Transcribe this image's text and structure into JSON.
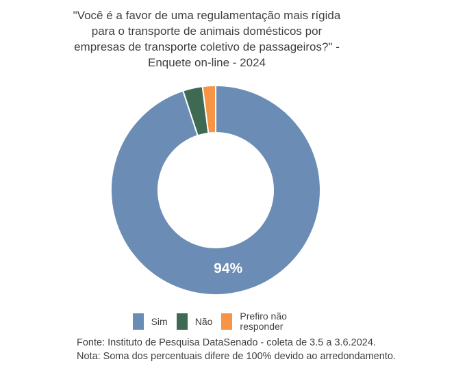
{
  "page": {
    "background_color": "#ffffff",
    "text_color": "#3f3f3f"
  },
  "chart_data": {
    "type": "pie",
    "subtype": "donut",
    "title": "\"Você é a favor de uma regulamentação mais rígida\npara o transporte de animais domésticos por\nempresas de transporte coletivo de passageiros?\" -\nEnquete on-line - 2024",
    "items": [
      {
        "key": "sim",
        "label": "Sim",
        "value": 94,
        "color": "#6b8cb4",
        "data_label": "94%"
      },
      {
        "key": "nao",
        "label": "Não",
        "value": 3,
        "color": "#3e6a54",
        "data_label": null
      },
      {
        "key": "prefiro-nao-responder",
        "label": "Prefiro não responder",
        "value": 2,
        "color": "#f79445",
        "data_label": null
      }
    ],
    "donut_hole_ratio": 0.55,
    "start_angle_deg": 0,
    "direction": "clockwise",
    "legend_position": "bottom",
    "separator_color": "#ffffff",
    "data_label_color": "#ffffff"
  },
  "footer": {
    "fonte": "Fonte: Instituto de Pesquisa DataSenado - coleta de 3.5 a 3.6.2024.",
    "nota": "Nota: Soma dos percentuais difere de 100% devido ao arredondamento."
  }
}
